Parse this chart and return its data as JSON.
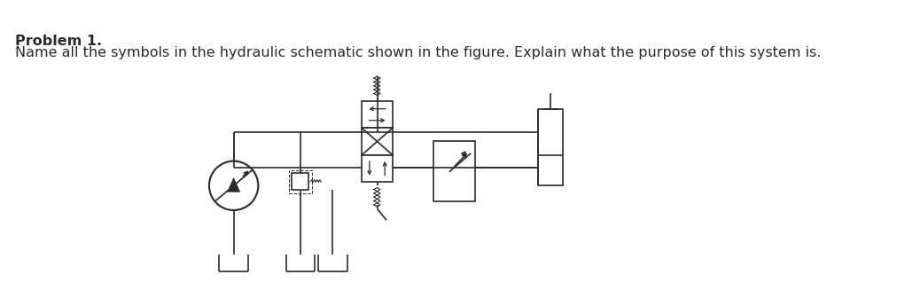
{
  "title_bold": "Problem 1.",
  "subtitle": "Name all the symbols in the hydraulic schematic shown in the figure. Explain what the purpose of this system is.",
  "background_color": "#ffffff",
  "line_color": "#2a2a2a",
  "title_fontsize": 11.5,
  "subtitle_fontsize": 11.5,
  "fig_width": 10.21,
  "fig_height": 3.45,
  "dpi": 100
}
